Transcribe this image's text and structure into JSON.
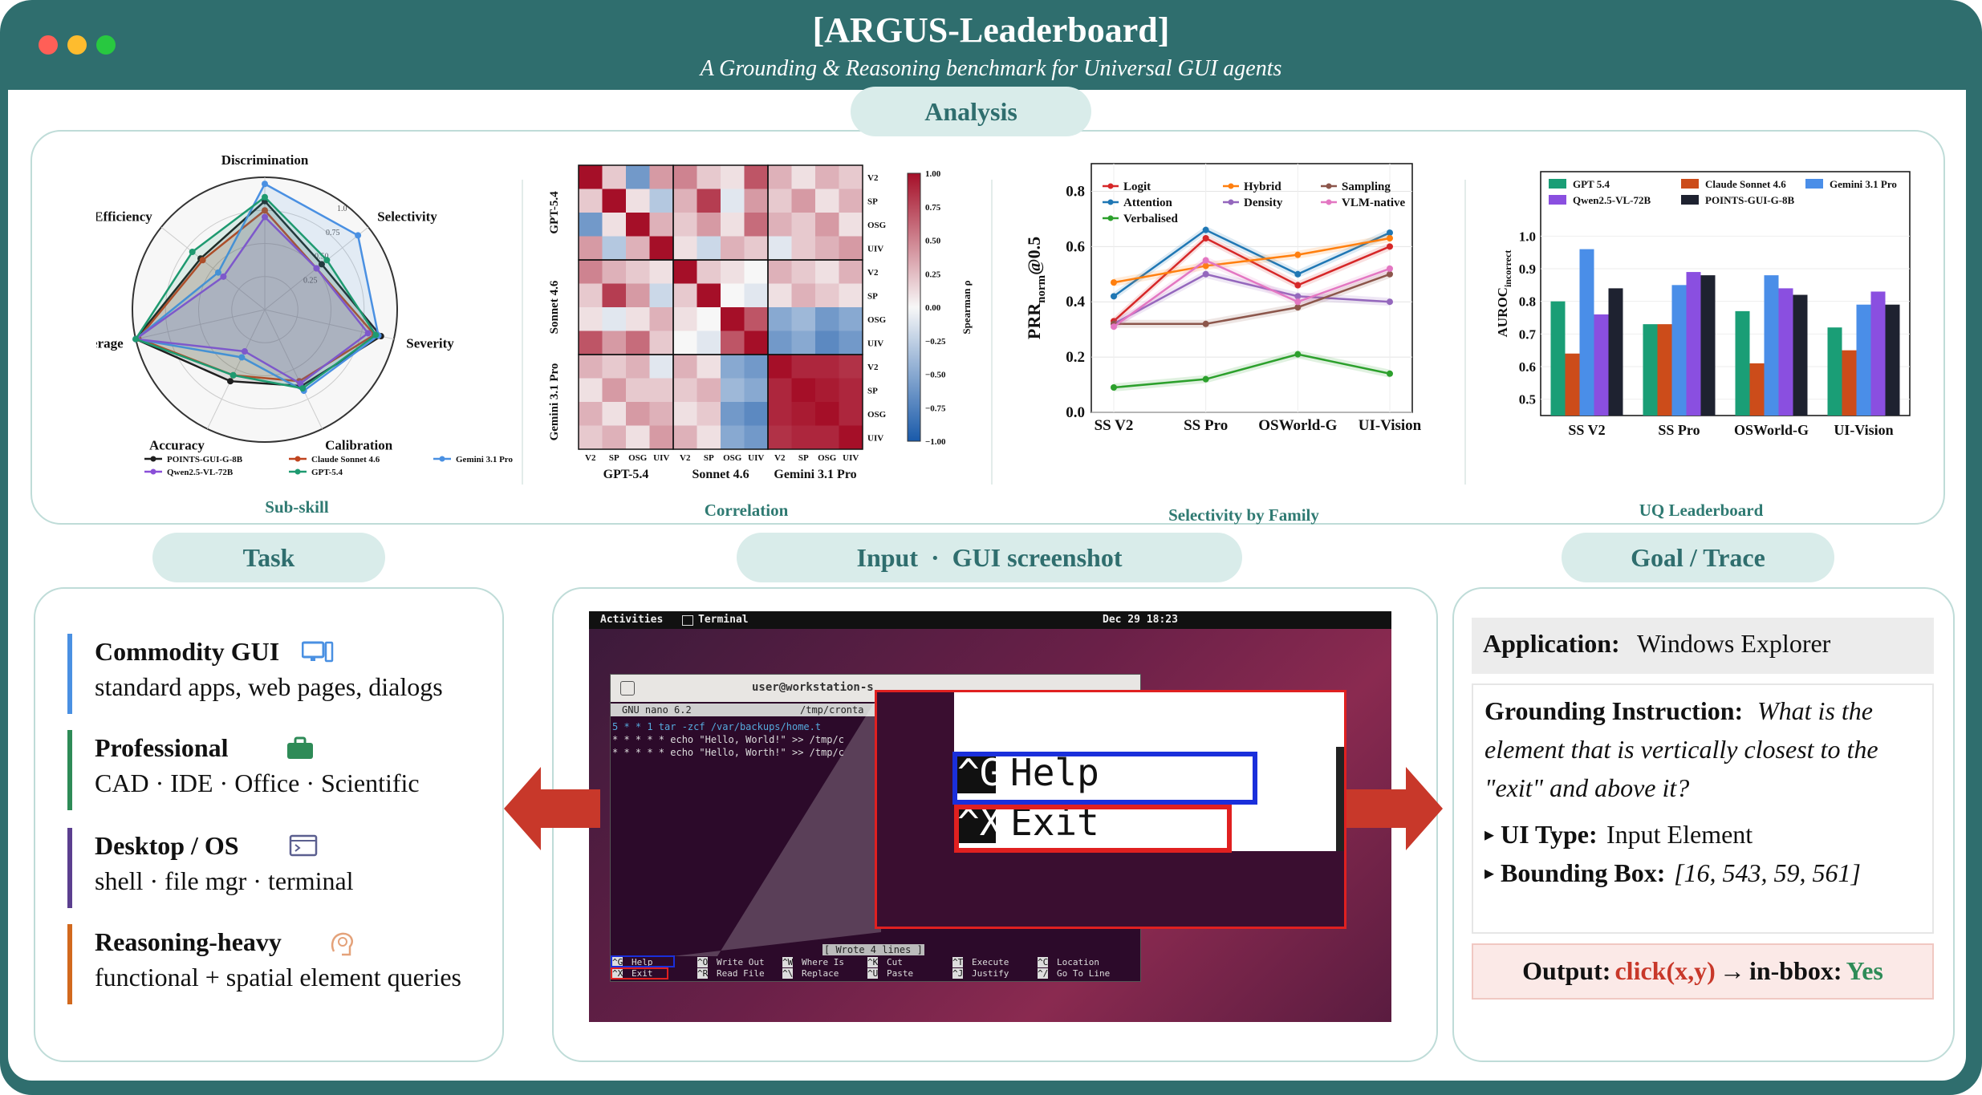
{
  "header": {
    "title": "[ARGUS-Leaderboard]",
    "subtitle": "A Grounding & Reasoning benchmark for Universal GUI agents"
  },
  "sections": {
    "analysis": "Analysis",
    "task": "Task",
    "input": "Input  ·  GUI screenshot",
    "goal": "Goal / Trace"
  },
  "captions": {
    "subskill": "Sub-skill",
    "correlation": "Correlation",
    "selectivity": "Selectivity by Family",
    "uq": "UQ Leaderboard"
  },
  "chart_data": [
    {
      "type": "radar",
      "axes": [
        "Discrimination",
        "Selectivity",
        "Severity",
        "Calibration",
        "Accuracy",
        "Coverage",
        "Efficiency"
      ],
      "ring_labels": [
        "0.25",
        "0.50",
        "0.75",
        "1.0"
      ],
      "series": [
        {
          "name": "POINTS-GUI-G-8B",
          "color": "#1f1f1f",
          "values": [
            0.82,
            0.55,
            0.9,
            0.64,
            0.6,
            1.0,
            0.62
          ]
        },
        {
          "name": "Claude Sonnet 4.6",
          "color": "#c0441f",
          "values": [
            0.75,
            0.5,
            0.85,
            0.6,
            0.55,
            0.98,
            0.6
          ]
        },
        {
          "name": "Gemini 3.1 Pro",
          "color": "#4a90e2",
          "values": [
            0.95,
            0.9,
            0.88,
            0.68,
            0.4,
            1.0,
            0.45
          ]
        },
        {
          "name": "Qwen2.5-VL-72B",
          "color": "#8a4fd8",
          "values": [
            0.7,
            0.5,
            0.8,
            0.62,
            0.35,
            1.0,
            0.4
          ]
        },
        {
          "name": "GPT-5.4",
          "color": "#1e9a70",
          "values": [
            0.85,
            0.6,
            0.86,
            0.66,
            0.55,
            1.0,
            0.7
          ]
        }
      ]
    },
    {
      "type": "heatmap",
      "row_groups": [
        "GPT-5.4",
        "Sonnet 4.6",
        "Gemini 3.1 Pro"
      ],
      "col_groups": [
        "GPT-5.4",
        "Sonnet 4.6",
        "Gemini 3.1 Pro"
      ],
      "tick_labels": [
        "V2",
        "SP",
        "OSG",
        "UIV"
      ],
      "colorbar_label": "Spearman ρ",
      "colorbar_ticks": [
        "1.00",
        "0.75",
        "0.50",
        "0.25",
        "0.00",
        "−0.25",
        "−0.50",
        "−0.75",
        "−1.00"
      ],
      "values": [
        [
          1.0,
          0.2,
          -0.6,
          0.4,
          0.5,
          0.2,
          0.1,
          0.7,
          0.3,
          0.1,
          0.3,
          0.2
        ],
        [
          0.2,
          1.0,
          0.1,
          -0.3,
          0.3,
          0.8,
          -0.1,
          0.4,
          0.2,
          0.4,
          0.1,
          0.3
        ],
        [
          -0.6,
          0.1,
          1.0,
          0.3,
          0.2,
          0.4,
          0.1,
          0.6,
          0.3,
          0.2,
          0.4,
          0.1
        ],
        [
          0.4,
          -0.3,
          0.3,
          1.0,
          0.1,
          -0.2,
          0.3,
          0.2,
          -0.1,
          0.2,
          0.3,
          0.4
        ],
        [
          0.5,
          0.3,
          0.2,
          0.1,
          1.0,
          0.2,
          0.1,
          0.0,
          0.3,
          0.2,
          0.1,
          0.3
        ],
        [
          0.2,
          0.8,
          0.4,
          -0.2,
          0.2,
          1.0,
          0.0,
          -0.1,
          0.1,
          0.3,
          0.2,
          0.1
        ],
        [
          0.1,
          -0.1,
          0.1,
          0.3,
          0.1,
          0.0,
          1.0,
          0.7,
          -0.5,
          -0.4,
          -0.6,
          -0.5
        ],
        [
          0.7,
          0.4,
          0.6,
          0.2,
          0.0,
          -0.1,
          0.7,
          1.0,
          -0.6,
          -0.5,
          -0.7,
          -0.6
        ],
        [
          0.3,
          0.2,
          0.3,
          -0.1,
          0.3,
          0.1,
          -0.5,
          -0.6,
          1.0,
          0.9,
          0.9,
          0.85
        ],
        [
          0.1,
          0.4,
          0.2,
          0.2,
          0.2,
          0.3,
          -0.4,
          -0.5,
          0.9,
          1.0,
          0.95,
          0.9
        ],
        [
          0.3,
          0.1,
          0.4,
          0.3,
          0.1,
          0.2,
          -0.6,
          -0.7,
          0.9,
          0.95,
          1.0,
          0.9
        ],
        [
          0.2,
          0.3,
          0.1,
          0.4,
          0.3,
          0.1,
          -0.5,
          -0.6,
          0.85,
          0.9,
          0.9,
          1.0
        ]
      ]
    },
    {
      "type": "line",
      "categories": [
        "SS V2",
        "SS Pro",
        "OSWorld-G",
        "UI-Vision"
      ],
      "ylabel": "PRR",
      "ylabel_sub": "norm",
      "ylabel_suffix": "@0.5",
      "ylim": [
        0.0,
        0.9
      ],
      "yticks": [
        "0.0",
        "0.2",
        "0.4",
        "0.6",
        "0.8"
      ],
      "series": [
        {
          "name": "Logit",
          "color": "#d62728",
          "values": [
            0.33,
            0.63,
            0.46,
            0.6
          ]
        },
        {
          "name": "Attention",
          "color": "#1f77b4",
          "values": [
            0.42,
            0.66,
            0.5,
            0.65
          ]
        },
        {
          "name": "Verbalised",
          "color": "#2ca02c",
          "values": [
            0.09,
            0.12,
            0.21,
            0.14
          ]
        },
        {
          "name": "Hybrid",
          "color": "#ff7f0e",
          "values": [
            0.47,
            0.53,
            0.57,
            0.63
          ]
        },
        {
          "name": "Density",
          "color": "#9467bd",
          "values": [
            0.32,
            0.5,
            0.42,
            0.4
          ]
        },
        {
          "name": "Sampling",
          "color": "#8c564b",
          "values": [
            0.32,
            0.32,
            0.38,
            0.5
          ]
        },
        {
          "name": "VLM-native",
          "color": "#e377c2",
          "values": [
            0.31,
            0.55,
            0.4,
            0.52
          ]
        }
      ]
    },
    {
      "type": "bar",
      "categories": [
        "SS V2",
        "SS Pro",
        "OSWorld-G",
        "UI-Vision"
      ],
      "ylabel": "AUROC",
      "ylabel_sub": "incorrect",
      "ylim": [
        0.45,
        1.05
      ],
      "yticks": [
        "0.5",
        "0.6",
        "0.7",
        "0.8",
        "0.9",
        "1.0"
      ],
      "series": [
        {
          "name": "GPT 5.4",
          "color": "#1a9e76",
          "values": [
            0.8,
            0.73,
            0.77,
            0.72
          ]
        },
        {
          "name": "Claude Sonnet 4.6",
          "color": "#cc4c1a",
          "values": [
            0.64,
            0.73,
            0.61,
            0.65
          ]
        },
        {
          "name": "Gemini 3.1 Pro",
          "color": "#4a8ee8",
          "values": [
            0.96,
            0.85,
            0.88,
            0.79
          ]
        },
        {
          "name": "Qwen2.5-VL-72B",
          "color": "#8a4fe0",
          "values": [
            0.76,
            0.89,
            0.84,
            0.83
          ]
        },
        {
          "name": "POINTS-GUI-G-8B",
          "color": "#1e2230",
          "values": [
            0.84,
            0.88,
            0.82,
            0.79
          ]
        }
      ]
    }
  ],
  "tasks": [
    {
      "title": "Commodity GUI",
      "desc": "standard apps, web pages, dialogs",
      "icon": "monitor-icon",
      "color": "#4a90e2"
    },
    {
      "title": "Professional",
      "desc": "CAD  ·  IDE  ·  Office  ·  Scientific",
      "icon": "briefcase-icon",
      "color": "#2e8b57"
    },
    {
      "title": "Desktop / OS",
      "desc": "shell  ·  file mgr  ·  terminal",
      "icon": "terminal-icon",
      "color": "#5b3f8f"
    },
    {
      "title": "Reasoning-heavy",
      "desc": "functional + spatial element queries",
      "icon": "brain-icon",
      "color": "#d2691e"
    }
  ],
  "screenshot": {
    "topbar_left": "Activities",
    "topbar_app": "Terminal",
    "clock": "Dec 29  18:23",
    "window_title": "user@workstation-s",
    "nano_version": "GNU nano 6.2",
    "nano_path": "/tmp/cronta",
    "lines": [
      "5 * * 1 tar -zcf /var/backups/home.t",
      "* * * * * echo \"Hello, World!\" >> /tmp/c",
      "* * * * * echo \"Hello, Worth!\" >> /tmp/c"
    ],
    "status_msg": "[ Wrote 4 lines ]",
    "shortcuts_row1": [
      [
        "^G",
        "Help"
      ],
      [
        "^O",
        "Write Out"
      ],
      [
        "^W",
        "Where Is"
      ],
      [
        "^K",
        "Cut"
      ],
      [
        "^T",
        "Execute"
      ],
      [
        "^C",
        "Location"
      ]
    ],
    "shortcuts_row2": [
      [
        "^X",
        "Exit"
      ],
      [
        "^R",
        "Read File"
      ],
      [
        "^\\",
        "Replace"
      ],
      [
        "^U",
        "Paste"
      ],
      [
        "^J",
        "Justify"
      ],
      [
        "^/",
        "Go To Line"
      ]
    ],
    "zoom_row1": [
      "^G",
      "Help"
    ],
    "zoom_row2": [
      "^X",
      "Exit"
    ]
  },
  "goal": {
    "app_label": "Application:",
    "app_value": "Windows Explorer",
    "instr_label": "Grounding Instruction:",
    "instr_lines": [
      "What is the",
      "element that is vertically closest to the",
      "\"exit\" and above it?"
    ],
    "uitype_label": "UI Type:",
    "uitype_value": "Input Element",
    "bbox_label": "Bounding Box:",
    "bbox_value": "[16, 543, 59, 561]",
    "output_label": "Output:",
    "output_action": "click(x,y)",
    "output_arrow": "→",
    "output_check": "in-bbox:",
    "output_result": "Yes"
  }
}
